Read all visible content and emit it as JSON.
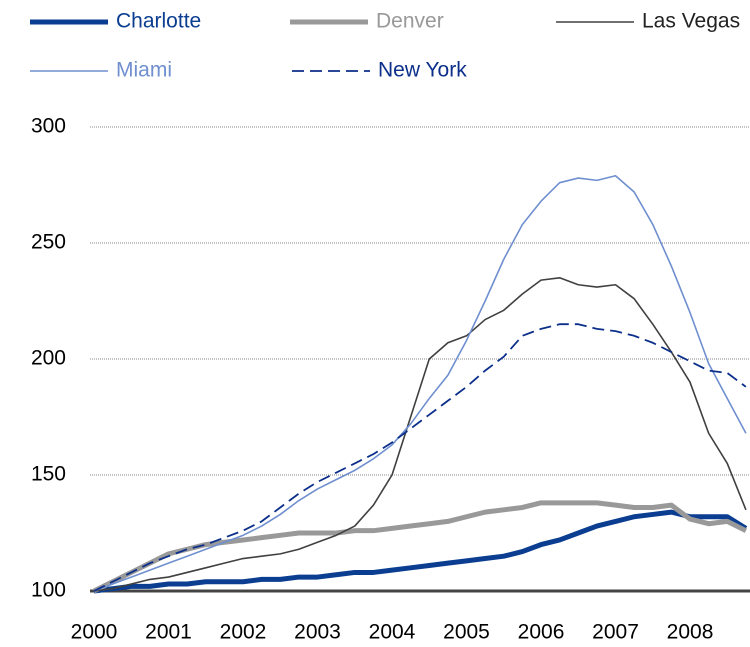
{
  "chart_data": {
    "type": "line",
    "x": [
      2000,
      2000.25,
      2000.5,
      2000.75,
      2001,
      2001.25,
      2001.5,
      2001.75,
      2002,
      2002.25,
      2002.5,
      2002.75,
      2003,
      2003.25,
      2003.5,
      2003.75,
      2004,
      2004.25,
      2004.5,
      2004.75,
      2005,
      2005.25,
      2005.5,
      2005.75,
      2006,
      2006.25,
      2006.5,
      2006.75,
      2007,
      2007.25,
      2007.5,
      2007.75,
      2008,
      2008.25,
      2008.5,
      2008.75
    ],
    "series": [
      {
        "name": "Charlotte",
        "color": "#0b3d91",
        "values": [
          100,
          101,
          102,
          102,
          103,
          103,
          104,
          104,
          104,
          105,
          105,
          106,
          106,
          107,
          108,
          108,
          109,
          110,
          111,
          112,
          113,
          114,
          115,
          117,
          120,
          122,
          125,
          128,
          130,
          132,
          133,
          134,
          132,
          132,
          132,
          127
        ]
      },
      {
        "name": "Denver",
        "color": "#999999",
        "values": [
          100,
          104,
          108,
          112,
          116,
          118,
          120,
          121,
          122,
          123,
          124,
          125,
          125,
          125,
          126,
          126,
          127,
          128,
          129,
          130,
          132,
          134,
          135,
          136,
          138,
          138,
          138,
          138,
          137,
          136,
          136,
          137,
          131,
          129,
          130,
          126
        ]
      },
      {
        "name": "Las Vegas",
        "color": "#404040",
        "values": [
          100,
          101,
          103,
          105,
          106,
          108,
          110,
          112,
          114,
          115,
          116,
          118,
          121,
          124,
          128,
          137,
          150,
          175,
          200,
          207,
          210,
          217,
          221,
          228,
          234,
          235,
          232,
          231,
          232,
          226,
          215,
          203,
          190,
          168,
          155,
          135
        ]
      },
      {
        "name": "Miami",
        "color": "#6f8fcf",
        "values": [
          100,
          103,
          106,
          109,
          112,
          115,
          118,
          121,
          124,
          128,
          133,
          139,
          144,
          148,
          152,
          157,
          163,
          172,
          183,
          193,
          208,
          225,
          243,
          258,
          268,
          276,
          278,
          277,
          279,
          272,
          258,
          240,
          220,
          198,
          183,
          168
        ]
      },
      {
        "name": "New York",
        "color": "#0b2f8a",
        "dashed": true,
        "values": [
          100,
          104,
          108,
          112,
          115,
          118,
          120,
          123,
          126,
          130,
          136,
          142,
          147,
          151,
          155,
          159,
          164,
          170,
          176,
          182,
          188,
          195,
          201,
          210,
          213,
          215,
          215,
          213,
          212,
          210,
          207,
          203,
          199,
          195,
          194,
          188
        ]
      }
    ],
    "xlim": [
      2000,
      2008.75
    ],
    "xticks": [
      2000,
      2001,
      2002,
      2003,
      2004,
      2005,
      2006,
      2007,
      2008
    ],
    "ylim": [
      100,
      300
    ],
    "yticks": [
      100,
      150,
      200,
      250,
      300
    ],
    "grid": true
  }
}
